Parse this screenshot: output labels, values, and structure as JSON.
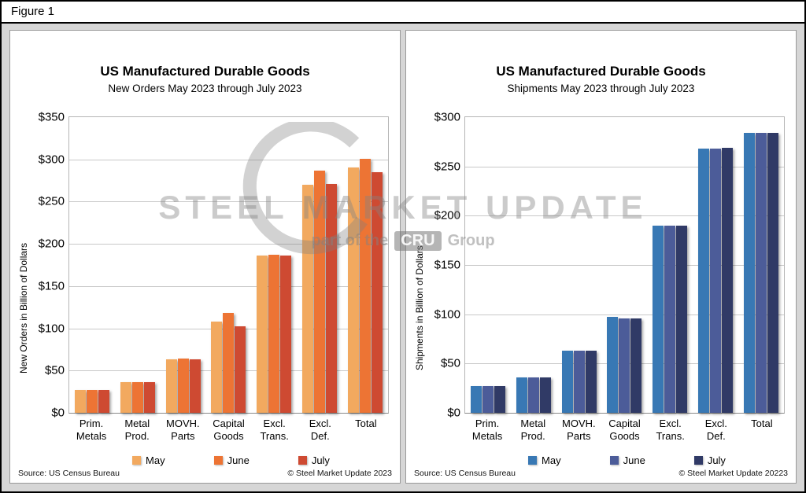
{
  "figure_label": "Figure 1",
  "watermark": {
    "line1": "STEEL MARKET UPDATE",
    "part1": "part of the",
    "cru": "CRU",
    "part2": "Group"
  },
  "chart_data": [
    {
      "type": "bar",
      "title": "US Manufactured Durable Goods",
      "subtitle": "New Orders May 2023 through July 2023",
      "ylabel": "New Orders in Billion of Dollars",
      "source": "Source: US Census Bureau",
      "copyright": "© Steel Market Update 2023",
      "categories": [
        "Prim.\nMetals",
        "Metal\nProd.",
        "MOVH.\nParts",
        "Capital\nGoods",
        "Excl.\nTrans.",
        "Excl.\nDef.",
        "Total"
      ],
      "series": [
        {
          "name": "May",
          "color": "#F2A95F",
          "values": [
            27,
            36,
            63,
            108,
            186,
            270,
            290
          ]
        },
        {
          "name": "June",
          "color": "#ED7434",
          "values": [
            27,
            36,
            64,
            118,
            187,
            287,
            301
          ]
        },
        {
          "name": "July",
          "color": "#CE4A32",
          "values": [
            27,
            36,
            63,
            102,
            186,
            271,
            285
          ]
        }
      ],
      "ylim": [
        0,
        350
      ],
      "ytick_step": 50,
      "grid": true,
      "legend_position": "bottom"
    },
    {
      "type": "bar",
      "title": "US Manufactured Durable Goods",
      "subtitle": "Shipments May 2023 through July 2023",
      "ylabel": "Shipments in Billion of Dollars",
      "source": "Source: US Census Bureau",
      "copyright": "© Steel Market Update 20223",
      "categories": [
        "Prim.\nMetals",
        "Metal\nProd.",
        "MOVH.\nParts",
        "Capital\nGoods",
        "Excl.\nTrans.",
        "Excl.\nDef.",
        "Total"
      ],
      "series": [
        {
          "name": "May",
          "color": "#3878B4",
          "values": [
            27,
            36,
            63,
            97,
            190,
            268,
            284
          ]
        },
        {
          "name": "June",
          "color": "#4C5C99",
          "values": [
            27,
            36,
            63,
            96,
            190,
            268,
            284
          ]
        },
        {
          "name": "July",
          "color": "#303A66",
          "values": [
            27,
            36,
            63,
            96,
            190,
            269,
            284
          ]
        }
      ],
      "ylim": [
        0,
        300
      ],
      "ytick_step": 50,
      "grid": true,
      "legend_position": "bottom"
    }
  ]
}
